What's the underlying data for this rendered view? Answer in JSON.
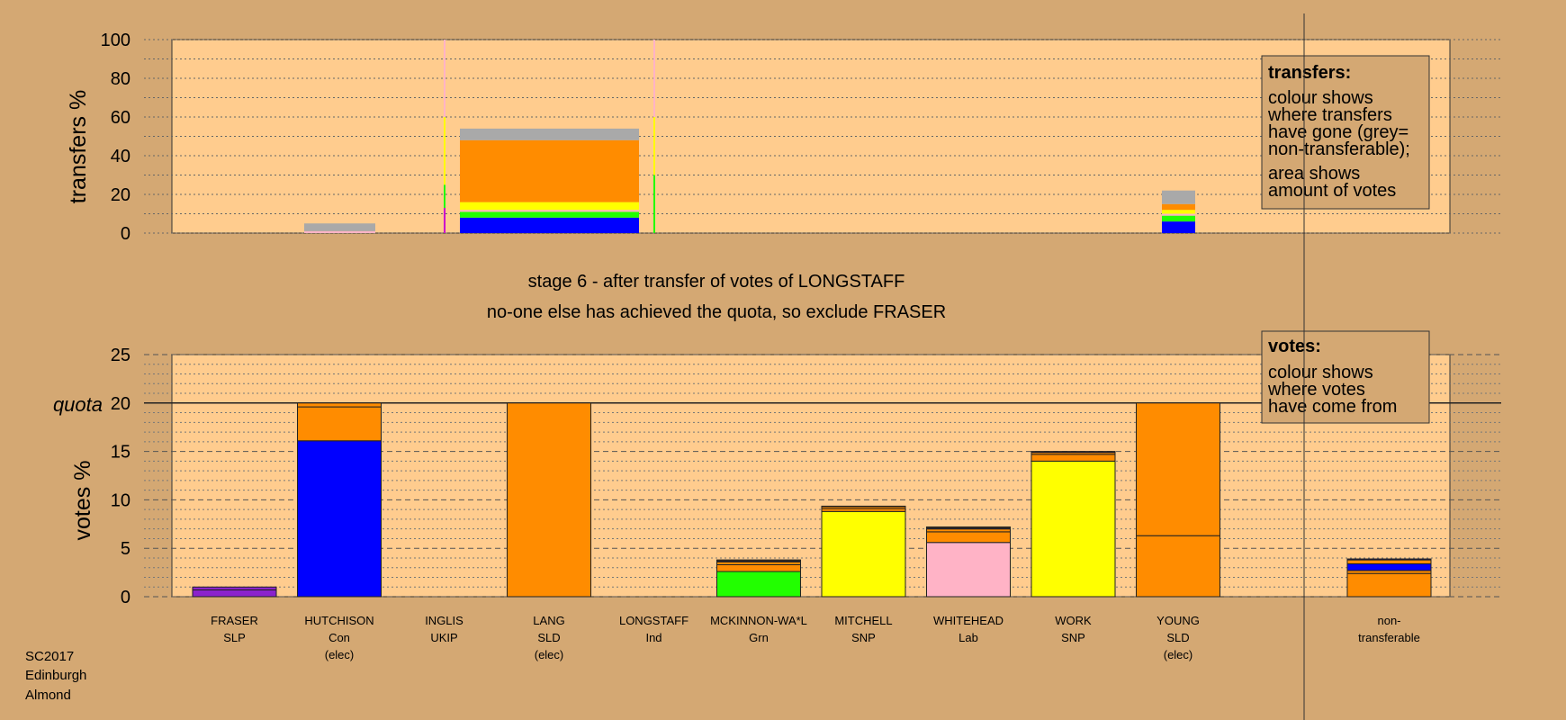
{
  "meta": {
    "footer": [
      "SC2017",
      "Edinburgh",
      "Almond"
    ],
    "stage_title": "stage 6 - after transfer of votes of LONGSTAFF",
    "stage_subtitle": "no-one else has achieved the quota, so exclude FRASER"
  },
  "colors": {
    "background": "#d4a873",
    "plot": "#ffcc8e",
    "SLP": "#8b22cc",
    "Con": "#0000ff",
    "UKIP": "#cc00cc",
    "SLD": "#ff8c00",
    "Ind": "#ff66cc",
    "Grn": "#22ff00",
    "SNP": "#ffff00",
    "Lab": "#ffb3c6",
    "nontransferable": "#a9a9a9"
  },
  "chart_data": [
    {
      "type": "bar",
      "stacked": true,
      "ylabel": "transfers %",
      "ylim": [
        0,
        100
      ],
      "yticks": [
        0,
        20,
        40,
        60,
        80,
        100
      ],
      "grid": true,
      "note": {
        "title": "transfers:",
        "lines": [
          "colour shows",
          "where transfers",
          "have gone (grey=",
          "non-transferable);",
          "area shows",
          "amount of votes"
        ]
      },
      "bars": [
        {
          "candidate": "HUTCHISON",
          "segments": [
            {
              "party": "Lab",
              "value": 1
            },
            {
              "party": "nontransferable",
              "value": 4
            }
          ]
        },
        {
          "candidate": "LANG",
          "segments": [
            {
              "party": "Con",
              "value": 8
            },
            {
              "party": "Grn",
              "value": 3
            },
            {
              "party": "Lab",
              "value": 1
            },
            {
              "party": "SNP",
              "value": 4
            },
            {
              "party": "SLD",
              "value": 32
            },
            {
              "party": "nontransferable",
              "value": 6
            }
          ]
        },
        {
          "candidate": "YOUNG",
          "segments": [
            {
              "party": "Con",
              "value": 6
            },
            {
              "party": "Grn",
              "value": 3
            },
            {
              "party": "Lab",
              "value": 1
            },
            {
              "party": "SNP",
              "value": 2
            },
            {
              "party": "SLD",
              "value": 3
            },
            {
              "party": "nontransferable",
              "value": 7
            }
          ]
        }
      ]
    },
    {
      "type": "bar",
      "stacked": true,
      "ylabel": "votes %",
      "quota_label": "quota",
      "quota": 20,
      "ylim": [
        0,
        25
      ],
      "yticks": [
        0,
        5,
        10,
        15,
        20,
        25
      ],
      "grid": true,
      "note": {
        "title": "votes:",
        "lines": [
          "colour shows",
          "where votes",
          "have come from"
        ]
      },
      "candidates": [
        {
          "name": "FRASER",
          "party": "SLP",
          "status": "",
          "segments": [
            {
              "party": "SLP",
              "value": 0.7
            },
            {
              "party": "SLP",
              "value": 0.3
            }
          ]
        },
        {
          "name": "HUTCHISON",
          "party": "Con",
          "status": "(elec)",
          "segments": [
            {
              "party": "Con",
              "value": 16.1
            },
            {
              "party": "SLD",
              "value": 3.5
            },
            {
              "party": "SLD",
              "value": 0.4
            }
          ]
        },
        {
          "name": "INGLIS",
          "party": "UKIP",
          "status": "",
          "segments": []
        },
        {
          "name": "LANG",
          "party": "SLD",
          "status": "(elec)",
          "segments": [
            {
              "party": "SLD",
              "value": 20
            }
          ]
        },
        {
          "name": "LONGSTAFF",
          "party": "Ind",
          "status": "",
          "segments": []
        },
        {
          "name": "MCKINNON-WA*L",
          "party": "Grn",
          "status": "",
          "segments": [
            {
              "party": "Grn",
              "value": 2.6
            },
            {
              "party": "SLD",
              "value": 0.7
            },
            {
              "party": "SLD",
              "value": 0.3
            },
            {
              "party": "Con",
              "value": 0.1
            },
            {
              "party": "SLD",
              "value": 0.1
            }
          ]
        },
        {
          "name": "MITCHELL",
          "party": "SNP",
          "status": "",
          "segments": [
            {
              "party": "SNP",
              "value": 8.8
            },
            {
              "party": "SLD",
              "value": 0.3
            },
            {
              "party": "SLD",
              "value": 0.2
            },
            {
              "party": "Con",
              "value": 0.05
            }
          ]
        },
        {
          "name": "WHITEHEAD",
          "party": "Lab",
          "status": "",
          "segments": [
            {
              "party": "Lab",
              "value": 5.6
            },
            {
              "party": "SLD",
              "value": 1.1
            },
            {
              "party": "SLD",
              "value": 0.3
            },
            {
              "party": "Con",
              "value": 0.1
            },
            {
              "party": "SLD",
              "value": 0.1
            }
          ]
        },
        {
          "name": "WORK",
          "party": "SNP",
          "status": "",
          "segments": [
            {
              "party": "SNP",
              "value": 14.0
            },
            {
              "party": "SLD",
              "value": 0.7
            },
            {
              "party": "SLD",
              "value": 0.2
            },
            {
              "party": "Con",
              "value": 0.1
            }
          ]
        },
        {
          "name": "YOUNG",
          "party": "SLD",
          "status": "(elec)",
          "segments": [
            {
              "party": "SLD",
              "value": 6.3
            },
            {
              "party": "SLD",
              "value": 13.7
            }
          ]
        },
        {
          "name": "non-",
          "party": "transferable",
          "status": "",
          "segments": [
            {
              "party": "SLD",
              "value": 2.4
            },
            {
              "party": "SLD",
              "value": 0.3
            },
            {
              "party": "Con",
              "value": 0.7
            },
            {
              "party": "SLD",
              "value": 0.4
            },
            {
              "party": "Con",
              "value": 0.1
            }
          ]
        }
      ]
    }
  ]
}
